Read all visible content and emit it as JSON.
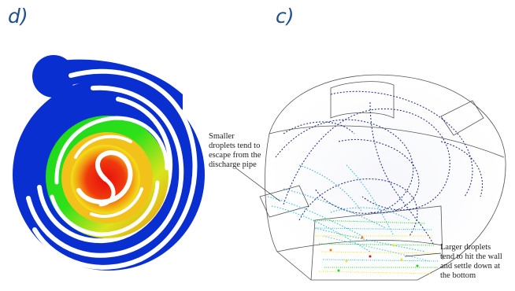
{
  "panels": {
    "left": {
      "label": "d)"
    },
    "right": {
      "label": "c)"
    }
  },
  "annotations": {
    "small_droplets": [
      "Smaller",
      "droplets tend to",
      "escape from the",
      "discharge pipe"
    ],
    "large_droplets": [
      "Larger droplets",
      "tend to hit the wall",
      "and settle down at",
      "the bottom"
    ]
  },
  "colors": {
    "spiral_blue": "#0a2fd0",
    "spiral_green": "#18d81c",
    "spiral_yellow": "#f1e21a",
    "spiral_orange": "#f07a10",
    "spiral_red": "#e80d0d",
    "trajectory_navy": "#1b2a80",
    "trajectory_cyan": "#22b8e0"
  }
}
